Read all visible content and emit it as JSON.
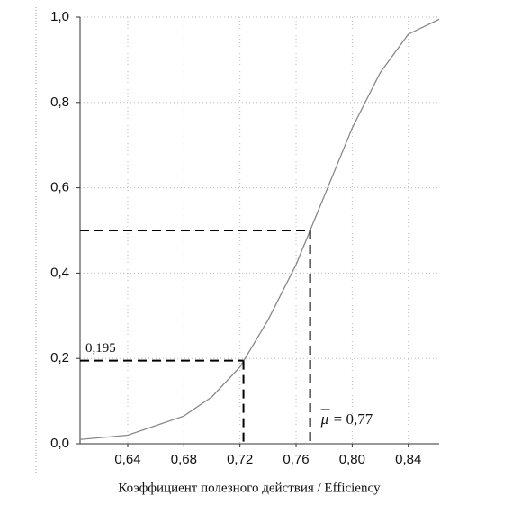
{
  "chart_data": {
    "type": "line",
    "x_label": "Коэффициент полезного действия / Efficiency",
    "x": [
      0.606,
      0.64,
      0.68,
      0.7,
      0.72,
      0.74,
      0.76,
      0.77,
      0.78,
      0.8,
      0.82,
      0.84,
      0.862
    ],
    "values": [
      0.01,
      0.02,
      0.065,
      0.11,
      0.18,
      0.29,
      0.42,
      0.5,
      0.58,
      0.74,
      0.87,
      0.96,
      0.995
    ],
    "color": "#888888",
    "xlim": [
      0.606,
      0.862
    ],
    "ylim": [
      0,
      1
    ],
    "xticks": [
      {
        "value": 0.64,
        "label": "0,64"
      },
      {
        "value": 0.68,
        "label": "0,68"
      },
      {
        "value": 0.72,
        "label": "0,72"
      },
      {
        "value": 0.76,
        "label": "0,76"
      },
      {
        "value": 0.8,
        "label": "0,80"
      },
      {
        "value": 0.84,
        "label": "0,84"
      }
    ],
    "yticks": [
      {
        "value": 0,
        "label": "0,0"
      },
      {
        "value": 0.2,
        "label": "0,2"
      },
      {
        "value": 0.4,
        "label": "0,4"
      },
      {
        "value": 0.6,
        "label": "0,6"
      },
      {
        "value": 0.8,
        "label": "0,8"
      },
      {
        "value": 1,
        "label": "1,0"
      }
    ],
    "grid": true,
    "guides": [
      {
        "x": 0.7225,
        "y": 0.195,
        "label": "0,195"
      },
      {
        "x": 0.77,
        "y": 0.5,
        "symbol": "μ",
        "label": "= 0,77"
      }
    ]
  }
}
